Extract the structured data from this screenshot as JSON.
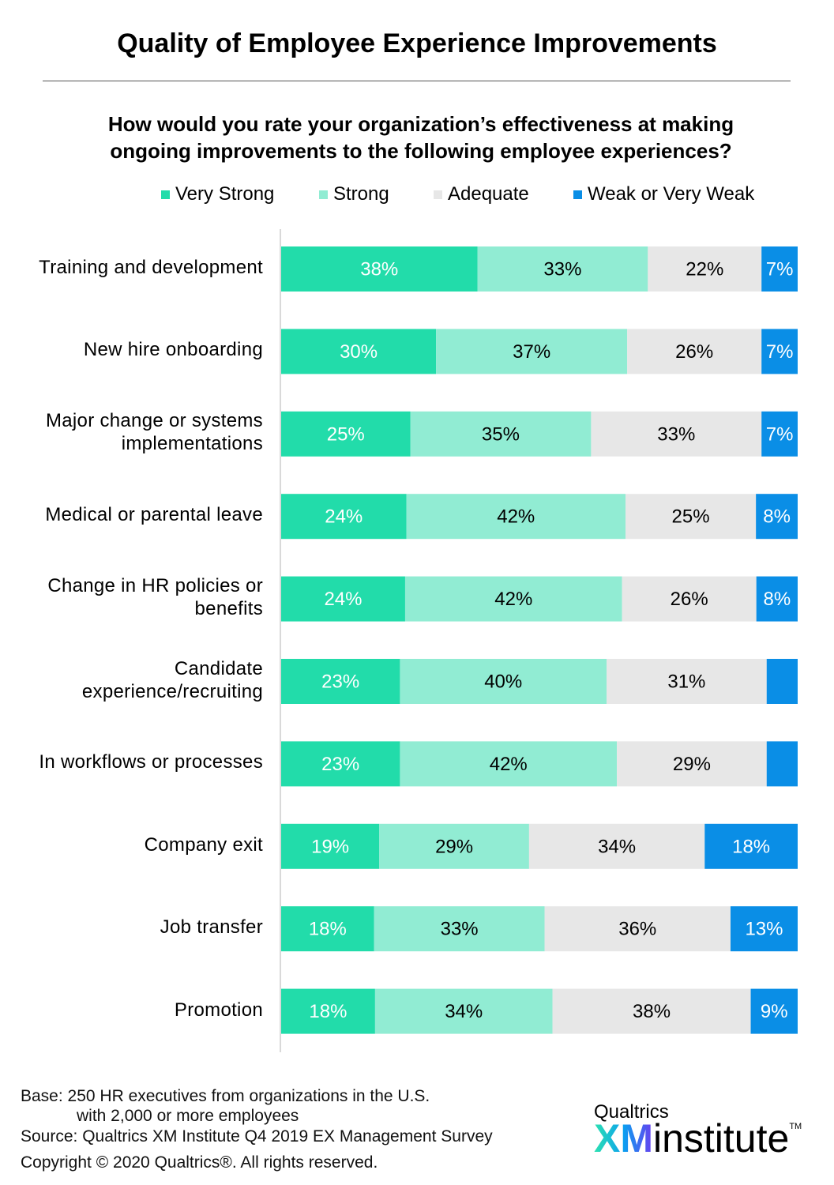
{
  "chart_data": {
    "type": "bar",
    "orientation": "horizontal",
    "stacked": true,
    "title": "Quality of Employee Experience Improvements",
    "subtitle": "How would you rate your organization’s effectiveness at making ongoing improvements to the following employee experiences?",
    "legend_placement": "top",
    "grid": false,
    "categories": [
      "Training and development",
      "New hire onboarding",
      "Major change or systems implementations",
      "Medical or parental leave",
      "Change in HR policies or benefits",
      "Candidate experience/recruiting",
      "In workflows or processes",
      "Company exit",
      "Job transfer",
      "Promotion"
    ],
    "series": [
      {
        "name": "Very Strong",
        "color": "#22dcaa",
        "label_color": "#ffffff",
        "values": [
          38,
          30,
          25,
          24,
          24,
          23,
          23,
          19,
          18,
          18
        ],
        "labels": [
          "38%",
          "30%",
          "25%",
          "24%",
          "24%",
          "23%",
          "23%",
          "19%",
          "18%",
          "18%"
        ]
      },
      {
        "name": "Strong",
        "color": "#91ecd3",
        "label_color": "#000000",
        "values": [
          33,
          37,
          35,
          42,
          42,
          40,
          42,
          29,
          33,
          34
        ],
        "labels": [
          "33%",
          "37%",
          "35%",
          "42%",
          "42%",
          "40%",
          "42%",
          "29%",
          "33%",
          "34%"
        ]
      },
      {
        "name": "Adequate",
        "color": "#e7e7e7",
        "label_color": "#000000",
        "values": [
          22,
          26,
          33,
          25,
          26,
          31,
          29,
          34,
          36,
          38
        ],
        "labels": [
          "22%",
          "26%",
          "33%",
          "25%",
          "26%",
          "31%",
          "29%",
          "34%",
          "36%",
          "38%"
        ]
      },
      {
        "name": "Weak or Very Weak",
        "color": "#0a8ee6",
        "label_color": "#ffffff",
        "values": [
          7,
          7,
          7,
          8,
          8,
          6,
          6,
          18,
          13,
          9
        ],
        "labels": [
          "7%",
          "7%",
          "7%",
          "8%",
          "8%",
          "",
          "",
          "18%",
          "13%",
          "9%"
        ]
      }
    ]
  },
  "footer": {
    "base": "Base: 250 HR executives from organizations in the U.S.",
    "base2": "with 2,000 or more employees",
    "source": "Source: Qualtrics XM Institute Q4 2019 EX Management Survey",
    "copyright": "Copyright © 2020 Qualtrics®.  All rights reserved."
  },
  "logo": {
    "line1": "Qualtrics",
    "xm": "XM",
    "word": "institute",
    "tm": "TM"
  }
}
